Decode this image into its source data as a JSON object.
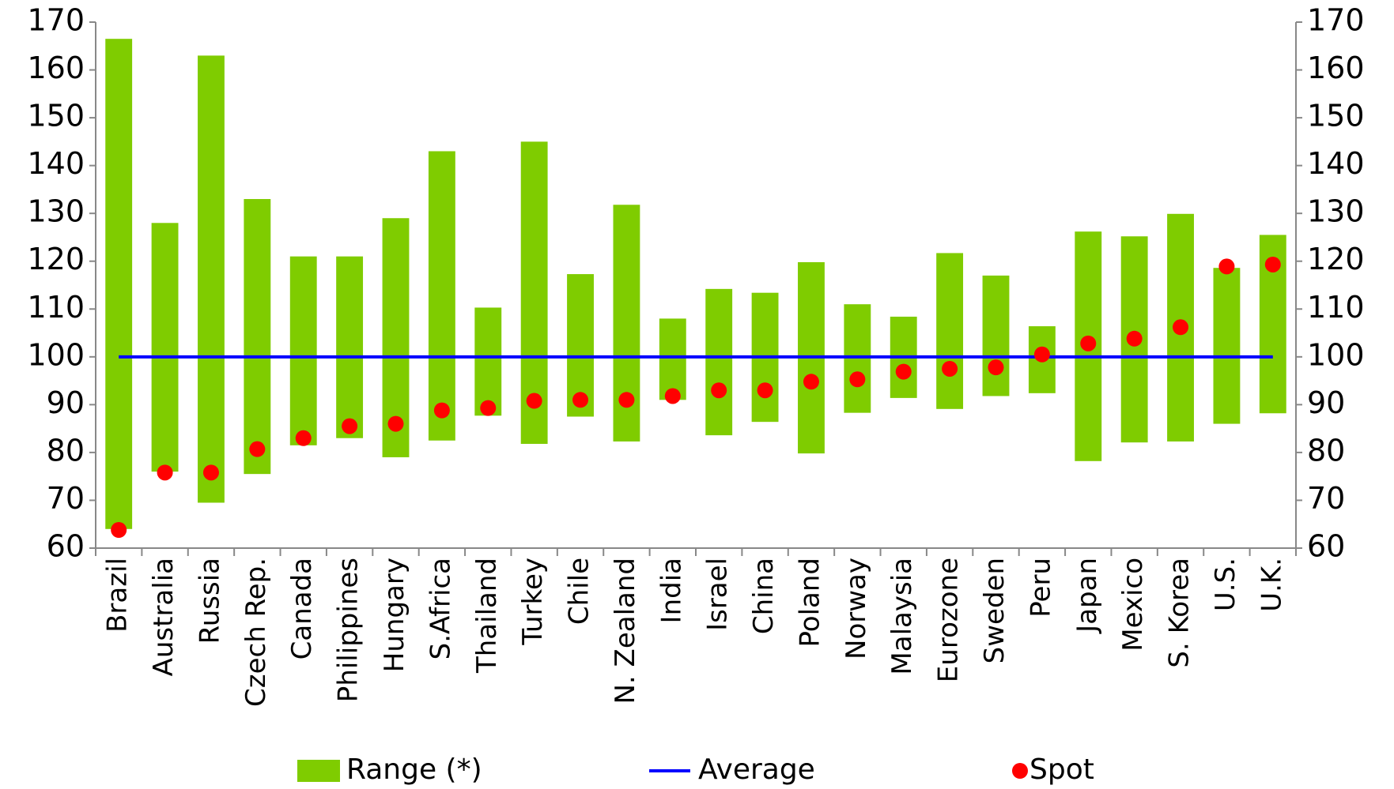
{
  "chart_data": {
    "type": "range-dot",
    "categories": [
      "Brazil",
      "Australia",
      "Russia",
      "Czech Rep.",
      "Canada",
      "Philippines",
      "Hungary",
      "S.Africa",
      "Thailand",
      "Turkey",
      "Chile",
      "N. Zealand",
      "India",
      "Israel",
      "China",
      "Poland",
      "Norway",
      "Malaysia",
      "Eurozone",
      "Sweden",
      "Peru",
      "Japan",
      "Mexico",
      "S. Korea",
      "U.S.",
      "U.K."
    ],
    "series": [
      {
        "name": "Range (*)",
        "color": "#7fcc00",
        "values": [
          [
            64,
            166.5
          ],
          [
            76,
            128
          ],
          [
            69.5,
            163
          ],
          [
            75.5,
            133
          ],
          [
            81.5,
            121
          ],
          [
            83,
            121
          ],
          [
            79,
            129
          ],
          [
            82.5,
            143
          ],
          [
            87.7,
            110.3
          ],
          [
            81.8,
            145
          ],
          [
            87.5,
            117.3
          ],
          [
            82.3,
            131.8
          ],
          [
            91,
            108
          ],
          [
            83.6,
            114.2
          ],
          [
            86.4,
            113.4
          ],
          [
            79.8,
            119.8
          ],
          [
            88.3,
            111
          ],
          [
            91.4,
            108.4
          ],
          [
            89.1,
            121.7
          ],
          [
            91.8,
            117
          ],
          [
            92.4,
            106.4
          ],
          [
            78.2,
            126.2
          ],
          [
            82.1,
            125.2
          ],
          [
            82.3,
            129.9
          ],
          [
            86,
            118.6
          ],
          [
            88.2,
            125.5
          ]
        ]
      },
      {
        "name": "Average",
        "color": "#0000ff",
        "values": [
          100,
          100,
          100,
          100,
          100,
          100,
          100,
          100,
          100,
          100,
          100,
          100,
          100,
          100,
          100,
          100,
          100,
          100,
          100,
          100,
          100,
          100,
          100,
          100,
          100,
          100
        ]
      },
      {
        "name": "Spot",
        "color": "#ff0000",
        "values": [
          63.8,
          75.8,
          75.8,
          80.7,
          83,
          85.5,
          86,
          88.8,
          89.3,
          90.8,
          91,
          91,
          91.8,
          93,
          93,
          94.8,
          95.3,
          96.9,
          97.5,
          97.8,
          100.5,
          102.8,
          103.8,
          106.2,
          118.9,
          119.3
        ]
      }
    ],
    "ylim": [
      60,
      170
    ],
    "yticks": [
      60,
      70,
      80,
      90,
      100,
      110,
      120,
      130,
      140,
      150,
      160,
      170
    ],
    "y2lim": [
      60,
      170
    ],
    "y2ticks": [
      60,
      70,
      80,
      90,
      100,
      110,
      120,
      130,
      140,
      150,
      160,
      170
    ],
    "legend": "bottom"
  }
}
